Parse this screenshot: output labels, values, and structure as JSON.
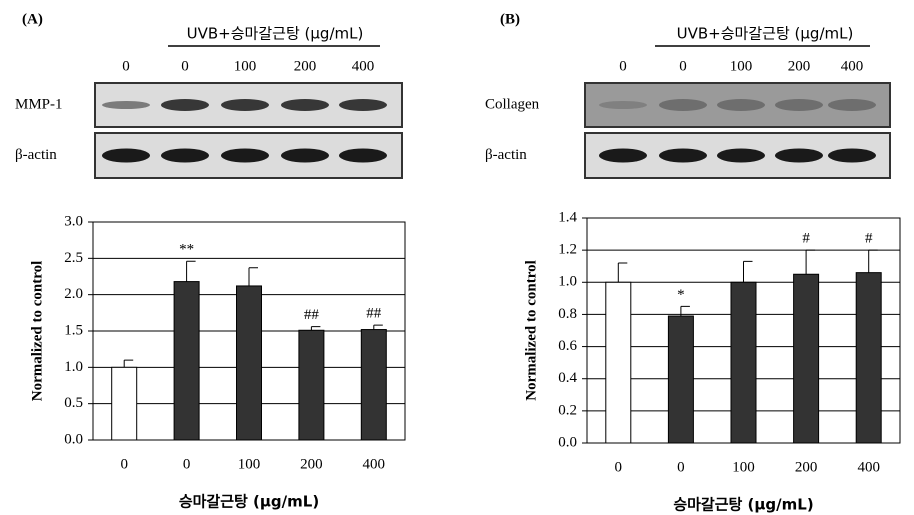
{
  "chart_data": [
    {
      "type": "bar",
      "panel": "(A)",
      "blot_header": "UVB+승마갈근탕 (μg/mL)",
      "blot_lanes": [
        "0",
        "0",
        "100",
        "200",
        "400"
      ],
      "blot_rows": [
        "MMP-1",
        "β-actin"
      ],
      "categories": [
        "0",
        "0",
        "100",
        "200",
        "400"
      ],
      "values": [
        1.0,
        2.18,
        2.12,
        1.51,
        1.52
      ],
      "errors": [
        0.1,
        0.28,
        0.25,
        0.05,
        0.06
      ],
      "annotations": [
        null,
        "**",
        null,
        "##",
        "##"
      ],
      "colors": [
        "#ffffff",
        "#333333",
        "#333333",
        "#333333",
        "#333333"
      ],
      "ylim": [
        0,
        3
      ],
      "yticks": [
        {
          "value": 0,
          "label": "0.0"
        },
        {
          "value": 0.5,
          "label": "0.5"
        },
        {
          "value": 1,
          "label": "1.0"
        },
        {
          "value": 1.5,
          "label": "1.5"
        },
        {
          "value": 2,
          "label": "2.0"
        },
        {
          "value": 2.5,
          "label": "2.5"
        },
        {
          "value": 3,
          "label": "3.0"
        }
      ],
      "ylabel": "Normalized to control",
      "xlabel": "승마갈근탕 (μg/mL)",
      "grid": true
    },
    {
      "type": "bar",
      "panel": "(B)",
      "blot_header": "UVB+승마갈근탕 (μg/mL)",
      "blot_lanes": [
        "0",
        "0",
        "100",
        "200",
        "400"
      ],
      "blot_rows": [
        "Collagen",
        "β-actin"
      ],
      "categories": [
        "0",
        "0",
        "100",
        "200",
        "400"
      ],
      "values": [
        1.0,
        0.79,
        1.0,
        1.05,
        1.06
      ],
      "errors": [
        0.12,
        0.06,
        0.13,
        0.15,
        0.14
      ],
      "annotations": [
        null,
        "*",
        null,
        "#",
        "#"
      ],
      "colors": [
        "#ffffff",
        "#333333",
        "#333333",
        "#333333",
        "#333333"
      ],
      "ylim": [
        0,
        1.4
      ],
      "yticks": [
        {
          "value": 0,
          "label": "0.0"
        },
        {
          "value": 0.2,
          "label": "0.2"
        },
        {
          "value": 0.4,
          "label": "0.4"
        },
        {
          "value": 0.6,
          "label": "0.6"
        },
        {
          "value": 0.8,
          "label": "0.8"
        },
        {
          "value": 1,
          "label": "1.0"
        },
        {
          "value": 1.2,
          "label": "1.2"
        },
        {
          "value": 1.4,
          "label": "1.4"
        }
      ],
      "ylabel": "Normalized to control",
      "xlabel": "승마갈근탕 (μg/mL)",
      "grid": true
    }
  ]
}
